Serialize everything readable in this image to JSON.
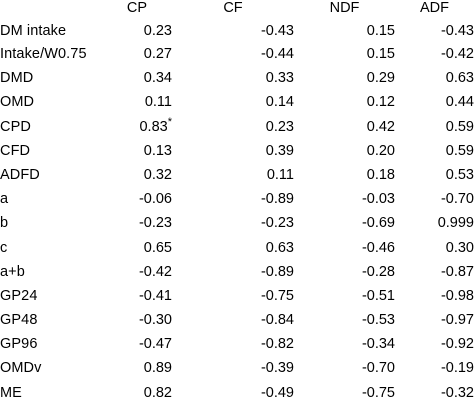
{
  "table": {
    "headers": [
      "",
      "CP",
      "CF",
      "NDF",
      "ADF"
    ],
    "rows": [
      {
        "label": "DM intake",
        "cp": "0.23",
        "cp_sig": "",
        "cf": "-0.43",
        "ndf": "0.15",
        "adf": "-0.43",
        "adf_sig": ""
      },
      {
        "label": "Intake/W0.75",
        "cp": "0.27",
        "cp_sig": "",
        "cf": "-0.44",
        "ndf": "0.15",
        "adf": "-0.42",
        "adf_sig": ""
      },
      {
        "label": "DMD",
        "cp": "0.34",
        "cp_sig": "",
        "cf": "0.33",
        "ndf": "0.29",
        "adf": "0.63",
        "adf_sig": ""
      },
      {
        "label": "OMD",
        "cp": "0.11",
        "cp_sig": "",
        "cf": "0.14",
        "ndf": "0.12",
        "adf": "0.44",
        "adf_sig": ""
      },
      {
        "label": "CPD",
        "cp": "0.83",
        "cp_sig": "*",
        "cf": "0.23",
        "ndf": "0.42",
        "adf": "0.59",
        "adf_sig": ""
      },
      {
        "label": "CFD",
        "cp": "0.13",
        "cp_sig": "",
        "cf": "0.39",
        "ndf": "0.20",
        "adf": "0.59",
        "adf_sig": ""
      },
      {
        "label": "ADFD",
        "cp": "0.32",
        "cp_sig": "",
        "cf": "0.11",
        "ndf": "0.18",
        "adf": "0.53",
        "adf_sig": ""
      },
      {
        "label": "a",
        "cp": "-0.06",
        "cp_sig": "",
        "cf": "-0.89",
        "ndf": "-0.03",
        "adf": "-0.70",
        "adf_sig": ""
      },
      {
        "label": "b",
        "cp": "-0.23",
        "cp_sig": "",
        "cf": "-0.23",
        "ndf": "-0.69",
        "adf": "0.999",
        "adf_sig": "***"
      },
      {
        "label": "c",
        "cp": "0.65",
        "cp_sig": "",
        "cf": "0.63",
        "ndf": "-0.46",
        "adf": "0.30",
        "adf_sig": ""
      },
      {
        "label": "a+b",
        "cp": "-0.42",
        "cp_sig": "",
        "cf": "-0.89",
        "ndf": "-0.28",
        "adf": "-0.87",
        "adf_sig": ""
      },
      {
        "label": "GP24",
        "cp": "-0.41",
        "cp_sig": "",
        "cf": "-0.75",
        "ndf": "-0.51",
        "adf": "-0.98",
        "adf_sig": "*"
      },
      {
        "label": "GP48",
        "cp": "-0.30",
        "cp_sig": "",
        "cf": "-0.84",
        "ndf": "-0.53",
        "adf": "-0.97",
        "adf_sig": "*"
      },
      {
        "label": "GP96",
        "cp": "-0.47",
        "cp_sig": "",
        "cf": "-0.82",
        "ndf": "-0.34",
        "adf": "-0.92",
        "adf_sig": ""
      },
      {
        "label": "OMDv",
        "cp": "0.89",
        "cp_sig": "",
        "cf": "-0.39",
        "ndf": "-0.70",
        "adf": "-0.19",
        "adf_sig": ""
      },
      {
        "label": "ME",
        "cp": "0.82",
        "cp_sig": "",
        "cf": "-0.49",
        "ndf": "-0.75",
        "adf": "-0.32",
        "adf_sig": ""
      }
    ]
  }
}
